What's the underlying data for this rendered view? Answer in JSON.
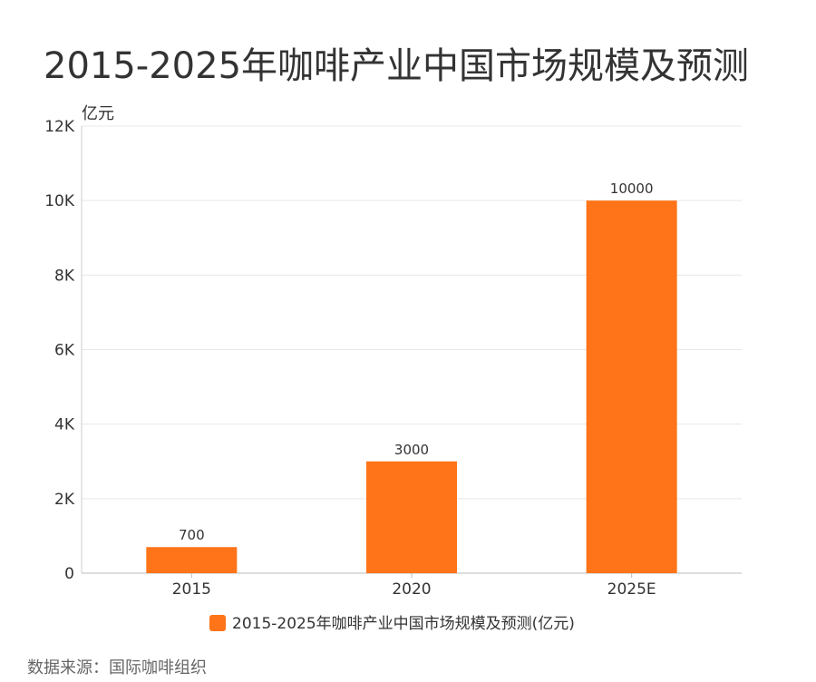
{
  "page": {
    "title": "2015-2025年咖啡产业中国市场规模及预测",
    "source": "数据来源：国际咖啡组织"
  },
  "chart_data": {
    "type": "bar",
    "title": "2015-2025年咖啡产业中国市场规模及预测",
    "categories": [
      "2015",
      "2020",
      "2025E"
    ],
    "series": [
      {
        "name": "2015-2025年咖啡产业中国市场规模及预测(亿元)",
        "values": [
          700,
          3000,
          10000
        ],
        "color": "#FF7418"
      }
    ],
    "data_labels": [
      "700",
      "3000",
      "10000"
    ],
    "ylabel": "亿元",
    "xlabel": "",
    "ylim": [
      0,
      12000
    ],
    "y_ticks": [
      0,
      2000,
      4000,
      6000,
      8000,
      10000,
      12000
    ],
    "y_tick_labels": [
      "0",
      "2K",
      "4K",
      "6K",
      "8K",
      "10K",
      "12K"
    ],
    "grid": true,
    "legend": "bottom-center"
  }
}
